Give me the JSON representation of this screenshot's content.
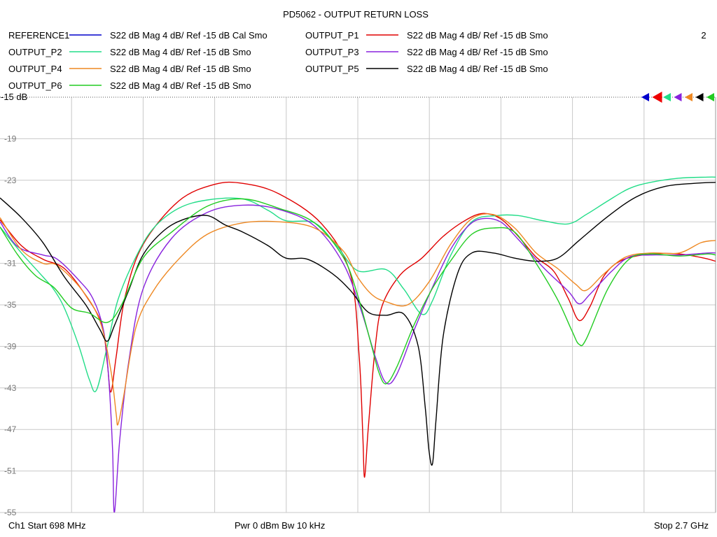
{
  "chart_data": {
    "type": "line",
    "title": "PD5062 - OUTPUT RETURN LOSS",
    "window_number": "2",
    "reference_label": "-15 dB",
    "footer": {
      "start": "Ch1  Start  698 MHz",
      "power": "Pwr  0 dBm  Bw  10 kHz",
      "stop": "Stop  2.7 GHz"
    },
    "x_range_mhz": [
      698,
      2700
    ],
    "ylim": [
      -55,
      -15
    ],
    "y_ticks": [
      -19,
      -23,
      -27,
      -31,
      -35,
      -39,
      -43,
      -47,
      -51,
      -55
    ],
    "y_tick_labels": [
      "-19",
      "-23",
      "",
      "-31",
      "-35",
      "-39",
      "-43",
      "-47",
      "-51",
      "-55"
    ],
    "x_divisions": 10,
    "grid": true,
    "legend_placement": "top",
    "marker_colors": [
      "#0000cc",
      "#ee0000",
      "#22dd88",
      "#8822dd",
      "#ee8822",
      "#000000",
      "#22cc22"
    ],
    "series": [
      {
        "name": "REFERENCE1",
        "desc": "S22  dB Mag  4 dB/ Ref -15 dB  Cal Smo",
        "color": "#0000cc",
        "points": []
      },
      {
        "name": "OUTPUT_P1",
        "desc": "S22  dB Mag  4 dB/ Ref -15 dB  Smo",
        "color": "#e00000",
        "points": [
          [
            698,
            -26.8
          ],
          [
            758,
            -29.3
          ],
          [
            818,
            -30.6
          ],
          [
            878,
            -31.5
          ],
          [
            938,
            -34.1
          ],
          [
            983,
            -36.9
          ],
          [
            998,
            -40.5
          ],
          [
            1008,
            -43.4
          ],
          [
            1023,
            -40.0
          ],
          [
            1048,
            -34.2
          ],
          [
            1098,
            -29.2
          ],
          [
            1198,
            -25.0
          ],
          [
            1298,
            -23.4
          ],
          [
            1378,
            -23.3
          ],
          [
            1478,
            -24.3
          ],
          [
            1598,
            -27.2
          ],
          [
            1678,
            -32.0
          ],
          [
            1703,
            -40.0
          ],
          [
            1713,
            -47.5
          ],
          [
            1718,
            -51.6
          ],
          [
            1728,
            -47.0
          ],
          [
            1748,
            -39.0
          ],
          [
            1768,
            -35.0
          ],
          [
            1818,
            -32.1
          ],
          [
            1878,
            -30.5
          ],
          [
            1938,
            -28.4
          ],
          [
            1998,
            -26.9
          ],
          [
            2048,
            -26.2
          ],
          [
            2098,
            -26.7
          ],
          [
            2148,
            -28.4
          ],
          [
            2198,
            -30.4
          ],
          [
            2248,
            -31.8
          ],
          [
            2288,
            -34.4
          ],
          [
            2318,
            -36.5
          ],
          [
            2348,
            -35.2
          ],
          [
            2388,
            -32.2
          ],
          [
            2438,
            -30.7
          ],
          [
            2518,
            -30.1
          ],
          [
            2598,
            -30.1
          ],
          [
            2668,
            -30.5
          ],
          [
            2700,
            -30.8
          ]
        ]
      },
      {
        "name": "OUTPUT_P2",
        "desc": "S22  dB Mag  4 dB/ Ref -15 dB  Smo",
        "color": "#22dd88",
        "points": [
          [
            698,
            -27.5
          ],
          [
            758,
            -30.0
          ],
          [
            818,
            -32.3
          ],
          [
            848,
            -33.5
          ],
          [
            878,
            -35.3
          ],
          [
            918,
            -38.9
          ],
          [
            948,
            -42.2
          ],
          [
            968,
            -43.2
          ],
          [
            998,
            -39.0
          ],
          [
            1028,
            -34.5
          ],
          [
            1078,
            -30.4
          ],
          [
            1128,
            -27.6
          ],
          [
            1198,
            -25.7
          ],
          [
            1278,
            -24.9
          ],
          [
            1378,
            -24.8
          ],
          [
            1448,
            -25.9
          ],
          [
            1498,
            -26.9
          ],
          [
            1578,
            -27.1
          ],
          [
            1638,
            -29.2
          ],
          [
            1698,
            -31.7
          ],
          [
            1778,
            -31.6
          ],
          [
            1828,
            -33.5
          ],
          [
            1878,
            -35.9
          ],
          [
            1908,
            -34.6
          ],
          [
            1958,
            -30.3
          ],
          [
            2018,
            -27.0
          ],
          [
            2088,
            -26.4
          ],
          [
            2148,
            -26.4
          ],
          [
            2218,
            -26.9
          ],
          [
            2288,
            -27.2
          ],
          [
            2338,
            -26.3
          ],
          [
            2398,
            -25.0
          ],
          [
            2458,
            -23.8
          ],
          [
            2518,
            -23.2
          ],
          [
            2598,
            -22.8
          ],
          [
            2678,
            -22.7
          ],
          [
            2700,
            -22.7
          ]
        ]
      },
      {
        "name": "OUTPUT_P3",
        "desc": "S22  dB Mag  4 dB/ Ref -15 dB  Smo",
        "color": "#8822dd",
        "points": [
          [
            698,
            -27.0
          ],
          [
            748,
            -29.4
          ],
          [
            818,
            -30.2
          ],
          [
            858,
            -30.6
          ],
          [
            918,
            -32.6
          ],
          [
            958,
            -34.4
          ],
          [
            988,
            -37.5
          ],
          [
            1003,
            -42.5
          ],
          [
            1013,
            -49.0
          ],
          [
            1018,
            -55.0
          ],
          [
            1033,
            -48.0
          ],
          [
            1058,
            -40.5
          ],
          [
            1098,
            -33.5
          ],
          [
            1178,
            -28.6
          ],
          [
            1278,
            -26.1
          ],
          [
            1378,
            -25.4
          ],
          [
            1478,
            -25.8
          ],
          [
            1578,
            -27.4
          ],
          [
            1658,
            -31.0
          ],
          [
            1708,
            -35.5
          ],
          [
            1748,
            -40.0
          ],
          [
            1778,
            -42.5
          ],
          [
            1808,
            -41.7
          ],
          [
            1858,
            -37.3
          ],
          [
            1908,
            -33.3
          ],
          [
            1958,
            -29.7
          ],
          [
            2008,
            -27.4
          ],
          [
            2048,
            -26.7
          ],
          [
            2098,
            -27.0
          ],
          [
            2148,
            -28.7
          ],
          [
            2218,
            -31.4
          ],
          [
            2288,
            -33.7
          ],
          [
            2318,
            -34.9
          ],
          [
            2348,
            -34.0
          ],
          [
            2408,
            -31.8
          ],
          [
            2458,
            -30.4
          ],
          [
            2518,
            -30.2
          ],
          [
            2598,
            -30.2
          ],
          [
            2678,
            -30.0
          ],
          [
            2700,
            -30.0
          ]
        ]
      },
      {
        "name": "OUTPUT_P4",
        "desc": "S22  dB Mag  4 dB/ Ref -15 dB  Smo",
        "color": "#ee8822",
        "points": [
          [
            698,
            -26.6
          ],
          [
            758,
            -29.7
          ],
          [
            818,
            -31.0
          ],
          [
            858,
            -31.2
          ],
          [
            928,
            -33.6
          ],
          [
            978,
            -36.6
          ],
          [
            1008,
            -41.3
          ],
          [
            1023,
            -45.5
          ],
          [
            1028,
            -46.5
          ],
          [
            1043,
            -44.0
          ],
          [
            1078,
            -37.2
          ],
          [
            1128,
            -33.6
          ],
          [
            1198,
            -30.6
          ],
          [
            1278,
            -28.2
          ],
          [
            1378,
            -27.1
          ],
          [
            1478,
            -27.0
          ],
          [
            1578,
            -27.6
          ],
          [
            1658,
            -29.8
          ],
          [
            1698,
            -32.3
          ],
          [
            1738,
            -34.0
          ],
          [
            1778,
            -34.7
          ],
          [
            1838,
            -35.0
          ],
          [
            1898,
            -32.8
          ],
          [
            1958,
            -29.2
          ],
          [
            2018,
            -26.7
          ],
          [
            2078,
            -26.3
          ],
          [
            2138,
            -27.6
          ],
          [
            2198,
            -30.0
          ],
          [
            2258,
            -31.5
          ],
          [
            2308,
            -33.0
          ],
          [
            2338,
            -33.6
          ],
          [
            2388,
            -32.0
          ],
          [
            2448,
            -30.4
          ],
          [
            2518,
            -30.0
          ],
          [
            2598,
            -30.0
          ],
          [
            2660,
            -29.0
          ],
          [
            2700,
            -28.8
          ]
        ]
      },
      {
        "name": "OUTPUT_P5",
        "desc": "S22  dB Mag  4 dB/ Ref -15 dB  Smo",
        "color": "#000000",
        "points": [
          [
            698,
            -24.7
          ],
          [
            758,
            -26.6
          ],
          [
            818,
            -29.0
          ],
          [
            878,
            -32.3
          ],
          [
            938,
            -35.0
          ],
          [
            978,
            -37.4
          ],
          [
            998,
            -38.5
          ],
          [
            1018,
            -37.0
          ],
          [
            1058,
            -33.6
          ],
          [
            1098,
            -30.2
          ],
          [
            1158,
            -27.8
          ],
          [
            1218,
            -26.7
          ],
          [
            1278,
            -26.4
          ],
          [
            1328,
            -27.3
          ],
          [
            1378,
            -28.0
          ],
          [
            1448,
            -29.3
          ],
          [
            1498,
            -30.5
          ],
          [
            1558,
            -30.6
          ],
          [
            1628,
            -32.0
          ],
          [
            1678,
            -33.6
          ],
          [
            1728,
            -35.7
          ],
          [
            1778,
            -36.0
          ],
          [
            1828,
            -35.9
          ],
          [
            1868,
            -39.0
          ],
          [
            1888,
            -45.0
          ],
          [
            1898,
            -49.0
          ],
          [
            1908,
            -50.3
          ],
          [
            1918,
            -46.0
          ],
          [
            1938,
            -38.0
          ],
          [
            1978,
            -32.0
          ],
          [
            2018,
            -30.0
          ],
          [
            2078,
            -30.0
          ],
          [
            2138,
            -30.5
          ],
          [
            2198,
            -30.8
          ],
          [
            2258,
            -30.5
          ],
          [
            2318,
            -28.8
          ],
          [
            2398,
            -26.5
          ],
          [
            2478,
            -24.6
          ],
          [
            2558,
            -23.6
          ],
          [
            2638,
            -23.3
          ],
          [
            2700,
            -23.2
          ]
        ]
      },
      {
        "name": "OUTPUT_P6",
        "desc": "S22  dB Mag  4 dB/ Ref -15 dB  Smo",
        "color": "#22cc22",
        "points": [
          [
            698,
            -27.5
          ],
          [
            748,
            -30.2
          ],
          [
            798,
            -32.2
          ],
          [
            848,
            -33.3
          ],
          [
            898,
            -35.3
          ],
          [
            948,
            -35.8
          ],
          [
            998,
            -36.7
          ],
          [
            1038,
            -35.0
          ],
          [
            1098,
            -30.5
          ],
          [
            1178,
            -28.0
          ],
          [
            1278,
            -25.5
          ],
          [
            1378,
            -24.8
          ],
          [
            1478,
            -25.7
          ],
          [
            1578,
            -27.1
          ],
          [
            1658,
            -30.4
          ],
          [
            1698,
            -34.0
          ],
          [
            1738,
            -39.0
          ],
          [
            1758,
            -41.5
          ],
          [
            1778,
            -42.6
          ],
          [
            1808,
            -41.0
          ],
          [
            1858,
            -36.8
          ],
          [
            1908,
            -33.4
          ],
          [
            1958,
            -30.8
          ],
          [
            2018,
            -28.2
          ],
          [
            2078,
            -27.6
          ],
          [
            2138,
            -28.0
          ],
          [
            2198,
            -31.0
          ],
          [
            2258,
            -34.5
          ],
          [
            2298,
            -37.5
          ],
          [
            2318,
            -38.8
          ],
          [
            2338,
            -38.3
          ],
          [
            2398,
            -33.5
          ],
          [
            2458,
            -30.6
          ],
          [
            2518,
            -30.1
          ],
          [
            2598,
            -30.3
          ],
          [
            2678,
            -30.1
          ],
          [
            2700,
            -30.2
          ]
        ]
      }
    ]
  }
}
